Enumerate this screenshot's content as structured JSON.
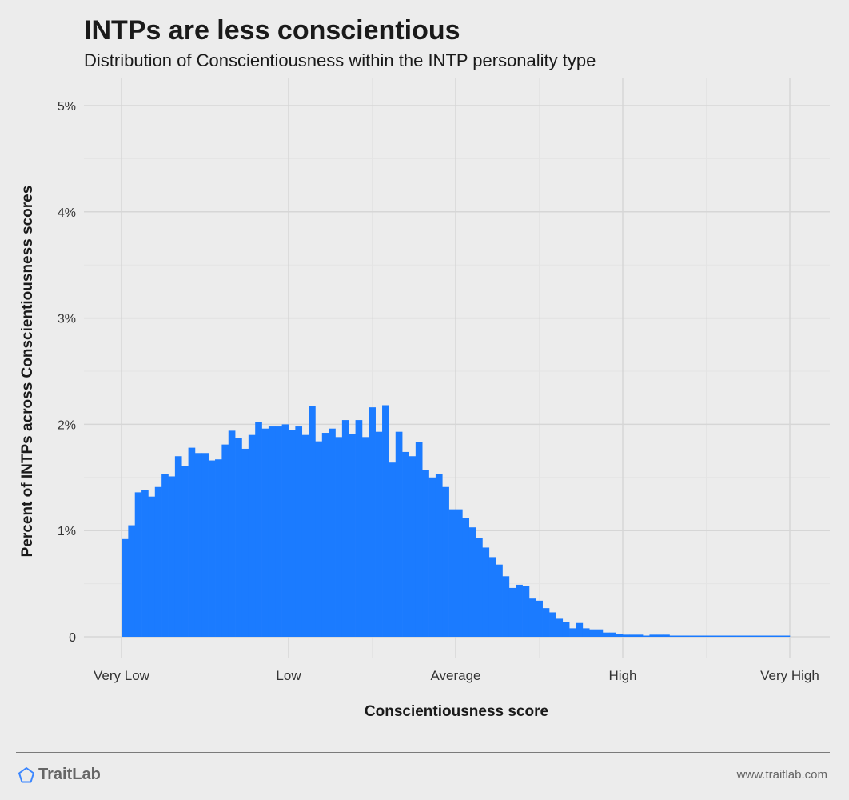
{
  "header": {
    "title": "INTPs are less conscientious",
    "subtitle": "Distribution of Conscientiousness within the INTP personality type"
  },
  "footer": {
    "brand": "TraitLab",
    "brand_icon": "pentagon-logo-icon",
    "site": "www.traitlab.com"
  },
  "colors": {
    "bar": "#1b7bff",
    "background": "#ececec",
    "grid_major": "#d6d6d6",
    "grid_minor": "#e4e4e4",
    "logo": "#3a86ff"
  },
  "chart_data": {
    "type": "bar",
    "title": "INTPs are less conscientious",
    "subtitle": "Distribution of Conscientiousness within the INTP personality type",
    "xlabel": "Conscientiousness score",
    "ylabel": "Percent of INTPs across Conscientiousness scores",
    "x_ticks": [
      "Very Low",
      "Low",
      "Average",
      "High",
      "Very High"
    ],
    "y_ticks": [
      "0",
      "1%",
      "2%",
      "3%",
      "4%",
      "5%"
    ],
    "ylim": [
      0,
      5.2
    ],
    "xlim": [
      0,
      100
    ],
    "grid": true,
    "legend": "none",
    "bin_width": 1,
    "values": [
      0.92,
      1.05,
      1.36,
      1.38,
      1.32,
      1.41,
      1.53,
      1.51,
      1.7,
      1.61,
      1.78,
      1.73,
      1.73,
      1.66,
      1.67,
      1.81,
      1.94,
      1.87,
      1.77,
      1.9,
      2.02,
      1.96,
      1.98,
      1.98,
      2.0,
      1.95,
      1.98,
      1.9,
      2.17,
      1.84,
      1.92,
      1.96,
      1.88,
      2.04,
      1.91,
      2.04,
      1.88,
      2.16,
      1.93,
      2.18,
      1.64,
      1.93,
      1.74,
      1.7,
      1.83,
      1.57,
      1.5,
      1.53,
      1.41,
      1.2,
      1.2,
      1.12,
      1.03,
      0.93,
      0.84,
      0.75,
      0.68,
      0.57,
      0.46,
      0.49,
      0.48,
      0.36,
      0.34,
      0.27,
      0.23,
      0.17,
      0.14,
      0.08,
      0.13,
      0.08,
      0.07,
      0.07,
      0.04,
      0.04,
      0.03,
      0.02,
      0.02,
      0.02,
      0.01,
      0.02,
      0.02,
      0.02,
      0.01,
      0.01,
      0.01,
      0.01,
      0.0,
      0.01,
      0.0,
      0.0,
      0.0,
      0.0,
      0.0,
      0.0,
      0.0,
      0.0,
      0.0,
      0.0,
      0.0,
      0.0
    ]
  }
}
